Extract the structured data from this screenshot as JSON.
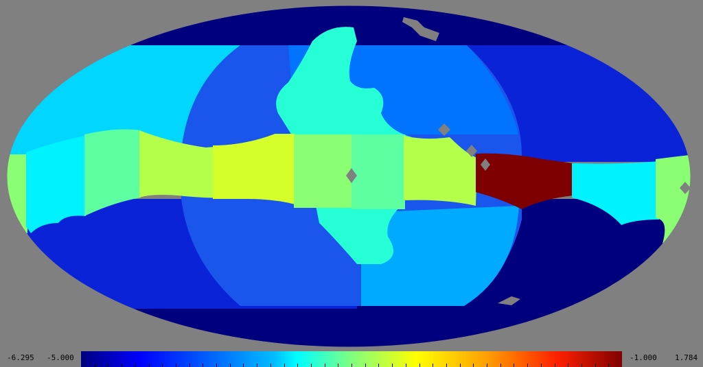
{
  "map": {
    "projection": "mollweide",
    "background_color": "#808080",
    "masked_color": "#808080",
    "palette": [
      "#00007f",
      "#0000ff",
      "#007fff",
      "#00ffff",
      "#7fff7f",
      "#ffff00",
      "#ff7f00",
      "#ff0000",
      "#7f0000"
    ],
    "region_colors": {
      "far_deep_blue": "#00007f",
      "band_blue": "#0b23d6",
      "mid_blue": "#1a55ec",
      "sky_blue": "#0073ff",
      "azure": "#00aaff",
      "light_cyan": "#00d6ff",
      "cyan": "#00f2ff",
      "aqua_green": "#26ffd6",
      "mint": "#5dffa0",
      "light_green": "#8aff73",
      "lime": "#b4ff4a",
      "yellow_green": "#d4ff2a",
      "dark_red": "#7f0000"
    }
  },
  "colorbar": {
    "min_label": "-6.295",
    "low_label": "-5.000",
    "high_label": "-1.000",
    "max_label": "1.784",
    "vmin": -6.295,
    "vmax": 1.784,
    "tick_count": 40
  }
}
